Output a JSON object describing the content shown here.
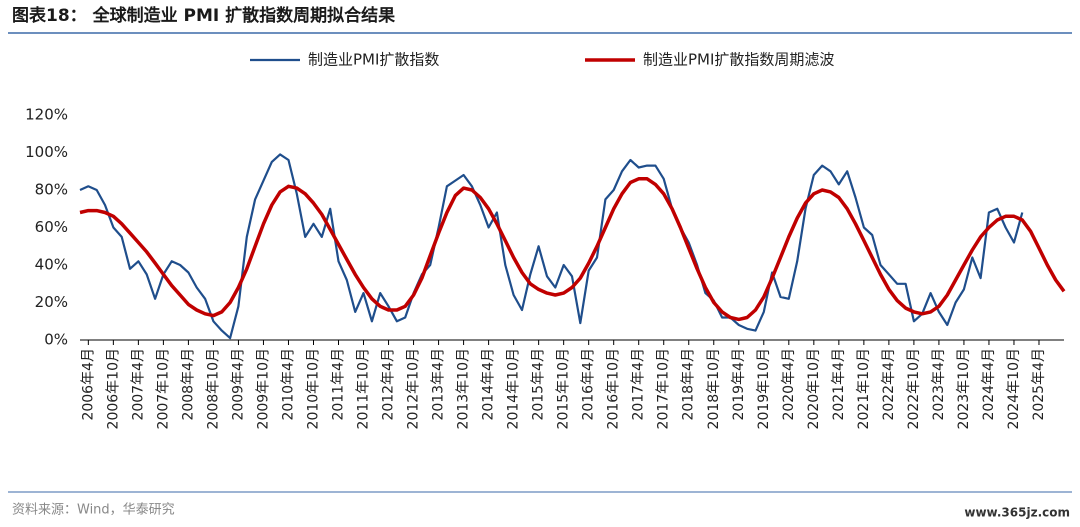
{
  "header": {
    "title": "图表18：  全球制造业 PMI 扩散指数周期拟合结果"
  },
  "chart_data": {
    "type": "line",
    "categories": [
      null,
      "2006年4月",
      null,
      null,
      "2006年10月",
      null,
      null,
      "2007年4月",
      null,
      null,
      "2007年10月",
      null,
      null,
      "2008年4月",
      null,
      null,
      "2008年10月",
      null,
      null,
      "2009年4月",
      null,
      null,
      "2009年10月",
      null,
      null,
      "2010年4月",
      null,
      null,
      "2010年10月",
      null,
      null,
      "2011年4月",
      null,
      null,
      "2011年10月",
      null,
      null,
      "2012年4月",
      null,
      null,
      "2012年10月",
      null,
      null,
      "2013年4月",
      null,
      null,
      "2013年10月",
      null,
      null,
      "2014年4月",
      null,
      null,
      "2014年10月",
      null,
      null,
      "2015年4月",
      null,
      null,
      "2015年10月",
      null,
      null,
      "2016年4月",
      null,
      null,
      "2016年10月",
      null,
      null,
      "2017年4月",
      null,
      null,
      "2017年10月",
      null,
      null,
      "2018年4月",
      null,
      null,
      "2018年10月",
      null,
      null,
      "2019年4月",
      null,
      null,
      "2019年10月",
      null,
      null,
      "2020年4月",
      null,
      null,
      "2020年10月",
      null,
      null,
      "2021年4月",
      null,
      null,
      "2021年10月",
      null,
      null,
      "2022年4月",
      null,
      null,
      "2022年10月",
      null,
      null,
      "2023年4月",
      null,
      null,
      "2023年10月",
      null,
      null,
      "2024年4月",
      null,
      null,
      "2024年10月",
      null,
      null,
      "2025年4月",
      null,
      null,
      null
    ],
    "series": [
      {
        "name": "制造业PMI扩散指数",
        "color": "#1f4e8c",
        "width": 2.2,
        "values": [
          80,
          82,
          80,
          72,
          60,
          55,
          38,
          42,
          35,
          22,
          35,
          42,
          40,
          36,
          28,
          22,
          10,
          5,
          1,
          18,
          55,
          75,
          85,
          95,
          99,
          96,
          78,
          55,
          62,
          55,
          70,
          42,
          32,
          15,
          25,
          10,
          25,
          18,
          10,
          12,
          25,
          35,
          40,
          60,
          82,
          85,
          88,
          82,
          72,
          60,
          68,
          40,
          24,
          16,
          35,
          50,
          34,
          28,
          40,
          34,
          9,
          37,
          44,
          75,
          80,
          90,
          96,
          92,
          93,
          93,
          86,
          70,
          60,
          52,
          40,
          25,
          21,
          12,
          12,
          8,
          6,
          5,
          15,
          36,
          23,
          22,
          42,
          70,
          88,
          93,
          90,
          83,
          90,
          76,
          60,
          56,
          40,
          35,
          30,
          30,
          10,
          14,
          25,
          15,
          8,
          20,
          27,
          44,
          33,
          68,
          70,
          60,
          52,
          68,
          null,
          null,
          null,
          null,
          null
        ]
      },
      {
        "name": "制造业PMI扩散指数周期滤波",
        "color": "#c00000",
        "width": 3.5,
        "values": [
          68,
          69,
          69,
          68,
          66,
          62,
          57,
          52,
          47,
          41,
          35,
          29,
          24,
          19,
          16,
          14,
          13,
          15,
          20,
          28,
          38,
          50,
          62,
          72,
          79,
          82,
          81,
          78,
          73,
          67,
          59,
          51,
          43,
          35,
          28,
          22,
          18,
          16,
          16,
          18,
          24,
          33,
          45,
          57,
          68,
          77,
          81,
          80,
          76,
          70,
          62,
          53,
          44,
          36,
          30,
          27,
          25,
          24,
          25,
          28,
          33,
          41,
          50,
          60,
          70,
          78,
          84,
          86,
          86,
          83,
          78,
          70,
          60,
          49,
          38,
          28,
          20,
          15,
          12,
          11,
          12,
          16,
          23,
          33,
          44,
          55,
          65,
          73,
          78,
          80,
          79,
          76,
          70,
          62,
          53,
          44,
          35,
          27,
          21,
          17,
          15,
          14,
          15,
          18,
          24,
          32,
          40,
          48,
          55,
          60,
          64,
          66,
          66,
          64,
          58,
          49,
          40,
          32,
          26
        ]
      }
    ],
    "ylim": [
      0,
      120
    ],
    "yticks": [
      {
        "value": 0,
        "label": "0%"
      },
      {
        "value": 20,
        "label": "20%"
      },
      {
        "value": 40,
        "label": "40%"
      },
      {
        "value": 60,
        "label": "60%"
      },
      {
        "value": 80,
        "label": "80%"
      },
      {
        "value": 100,
        "label": "100%"
      },
      {
        "value": 120,
        "label": "120%"
      }
    ],
    "grid": false,
    "legend": "top"
  },
  "footer": {
    "source": "资料来源：Wind，华泰研究",
    "watermark": "www.365jz.com"
  }
}
